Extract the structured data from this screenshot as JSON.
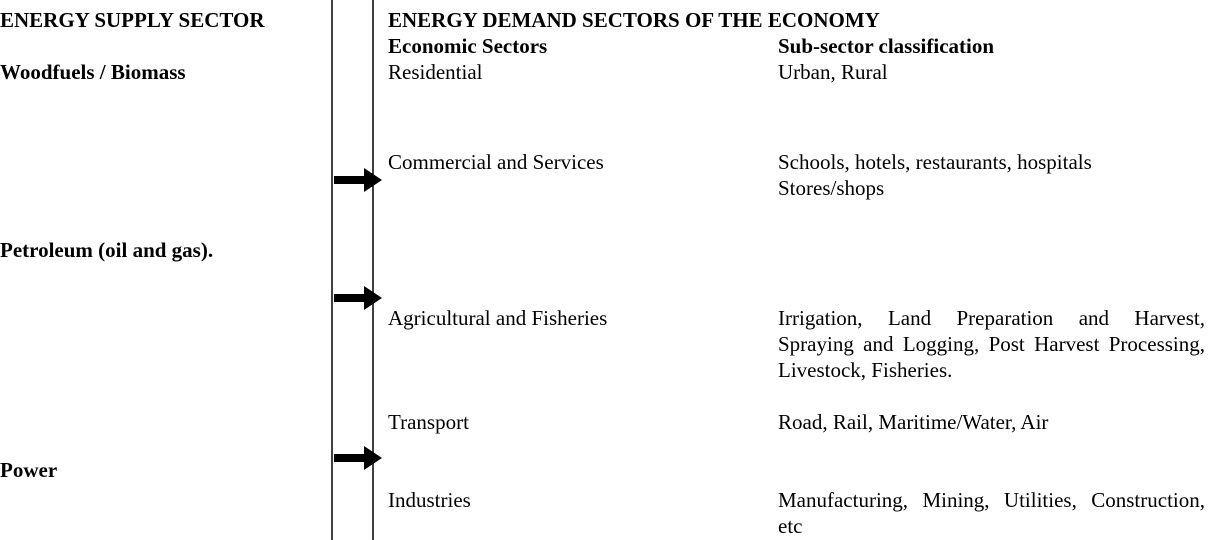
{
  "supply": {
    "title": "ENERGY SUPPLY SECTOR",
    "sources": [
      "Woodfuels / Biomass",
      "Petroleum (oil and gas).",
      "Power"
    ]
  },
  "demand": {
    "title": "ENERGY DEMAND SECTORS OF THE ECONOMY",
    "headers": [
      "Economic Sectors",
      "Sub-sector classification"
    ],
    "rows": [
      {
        "sector": "Residential",
        "subsectors": [
          "Urban, Rural"
        ]
      },
      {
        "sector": "Commercial and Services",
        "subsectors": [
          "Schools, hotels, restaurants, hospitals",
          "Stores/shops"
        ]
      },
      {
        "sector": "Agricultural and Fisheries",
        "subsectors": [
          "Irrigation, Land Preparation and Harvest, Spraying and Logging, Post Harvest Processing, Livestock, Fisheries."
        ]
      },
      {
        "sector": "Transport",
        "subsectors": [
          "Road, Rail, Maritime/Water, Air"
        ]
      },
      {
        "sector": "Industries",
        "subsectors": [
          "Manufacturing, Mining, Utilities, Construction, etc"
        ]
      }
    ]
  }
}
